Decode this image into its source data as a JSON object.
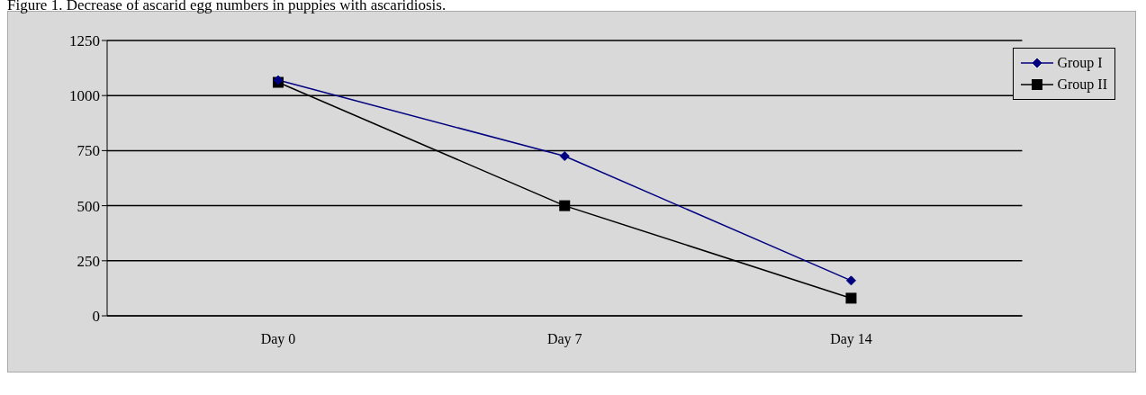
{
  "chart_data": {
    "type": "line",
    "title": "Figure 1. Decrease of ascarid egg numbers in puppies with ascaridiosis.",
    "categories": [
      "Day 0",
      "Day 7",
      "Day 14"
    ],
    "series": [
      {
        "name": "Group I",
        "color": "#000080",
        "marker": "diamond",
        "values": [
          1070,
          725,
          160
        ]
      },
      {
        "name": "Group II",
        "color": "#000000",
        "marker": "square",
        "values": [
          1060,
          500,
          80
        ]
      }
    ],
    "ylim": [
      0,
      1250
    ],
    "yticks": [
      0,
      250,
      500,
      750,
      1000,
      1250
    ],
    "grid": "y",
    "legend": "top right",
    "line_style": "solid"
  }
}
